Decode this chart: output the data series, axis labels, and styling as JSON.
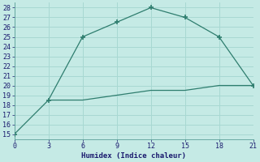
{
  "line1_x": [
    0,
    3,
    6,
    9,
    12,
    15,
    18,
    21
  ],
  "line1_y": [
    15,
    18.5,
    25,
    26.5,
    28,
    27,
    25,
    20
  ],
  "line2_x": [
    3,
    6,
    9,
    12,
    15,
    18,
    21
  ],
  "line2_y": [
    18.5,
    18.5,
    19,
    19.5,
    19.5,
    20,
    20
  ],
  "line_color": "#2E7D6E",
  "bg_color": "#C5EAE5",
  "grid_color": "#A8D8D2",
  "xlabel": "Humidex (Indice chaleur)",
  "xlim": [
    0,
    21
  ],
  "ylim": [
    14.5,
    28.5
  ],
  "xticks": [
    0,
    3,
    6,
    9,
    12,
    15,
    18,
    21
  ],
  "yticks": [
    15,
    16,
    17,
    18,
    19,
    20,
    21,
    22,
    23,
    24,
    25,
    26,
    27,
    28
  ]
}
